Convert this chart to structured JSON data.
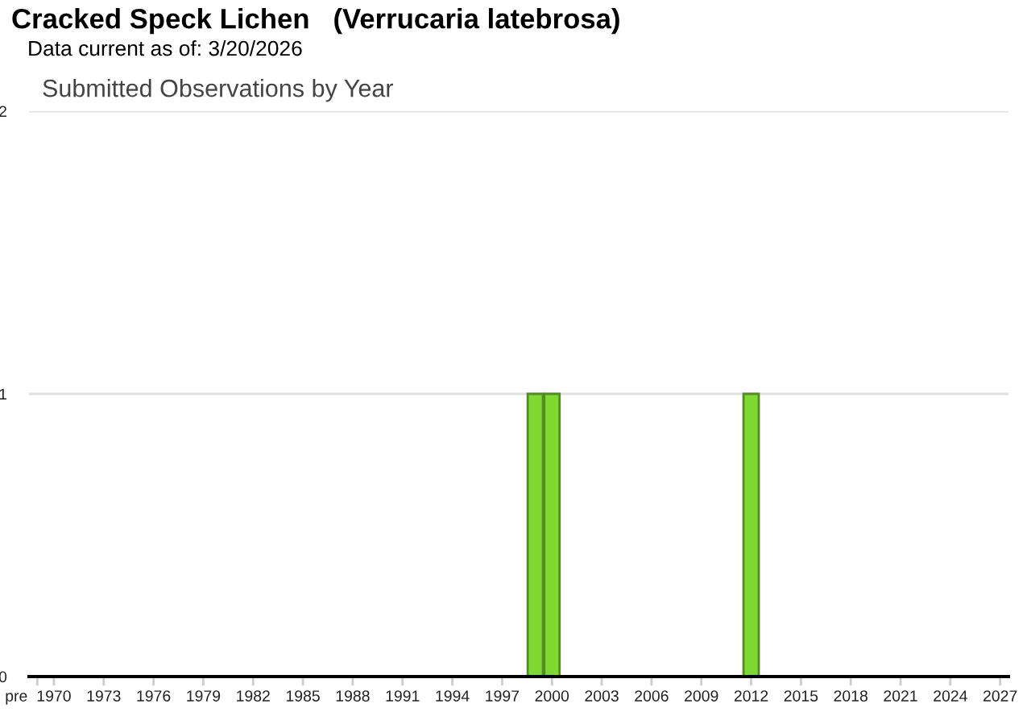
{
  "chart_data": {
    "type": "bar",
    "title": "Cracked Speck Lichen   (Verrucaria latebrosa)",
    "subtitle": "Data current as of: 3/20/2026",
    "annotations": [
      "Submitted Observations by Year"
    ],
    "categories": [
      "pre",
      "1970",
      null,
      null,
      "1973",
      null,
      null,
      "1976",
      null,
      null,
      "1979",
      null,
      null,
      "1982",
      null,
      null,
      "1985",
      null,
      null,
      "1988",
      null,
      null,
      "1991",
      null,
      null,
      "1994",
      null,
      null,
      "1997",
      null,
      null,
      "2000",
      null,
      null,
      "2003",
      null,
      null,
      "2006",
      null,
      null,
      "2009",
      null,
      null,
      "2012",
      null,
      null,
      "2015",
      null,
      null,
      "2018",
      null,
      null,
      "2021",
      null,
      null,
      "2024",
      null,
      null,
      "2027"
    ],
    "values": [
      0,
      0,
      0,
      0,
      0,
      0,
      0,
      0,
      0,
      0,
      0,
      0,
      0,
      0,
      0,
      0,
      0,
      0,
      0,
      0,
      0,
      0,
      0,
      0,
      0,
      0,
      0,
      0,
      0,
      0,
      1,
      1,
      0,
      0,
      0,
      0,
      0,
      0,
      0,
      0,
      0,
      0,
      0,
      1,
      0,
      0,
      0,
      0,
      0,
      0,
      0,
      0,
      0,
      0,
      0,
      0,
      0,
      0,
      0
    ],
    "color": "#80d832",
    "ylim": [
      0,
      2
    ],
    "yticks": [
      0,
      1,
      2
    ],
    "grid": "y"
  }
}
